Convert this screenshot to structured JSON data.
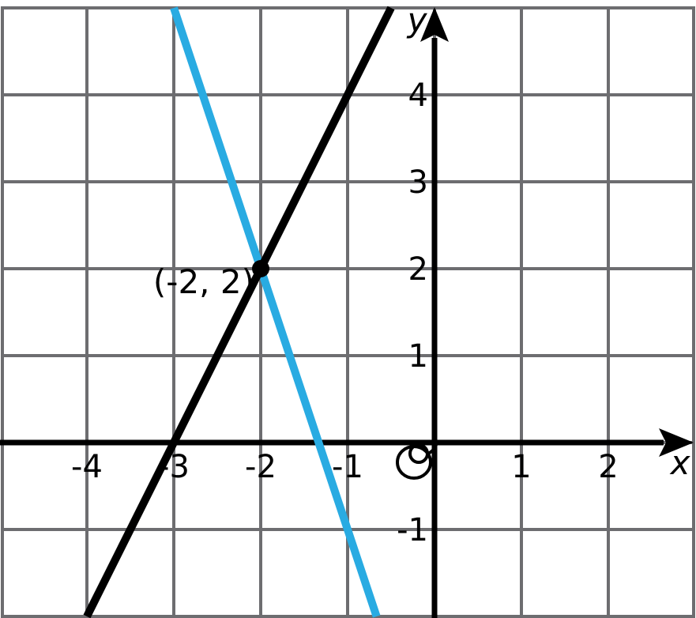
{
  "chart_data": {
    "type": "line",
    "title": "",
    "xlabel": "x",
    "ylabel": "y",
    "xlim": [
      -5,
      3
    ],
    "ylim": [
      -2,
      5
    ],
    "grid": true,
    "grid_step": 1,
    "x_ticks": [
      -4,
      -3,
      -2,
      -1,
      1,
      2
    ],
    "y_ticks": [
      4,
      3,
      2,
      1,
      -1
    ],
    "origin_label": "0",
    "series": [
      {
        "name": "black-line",
        "color": "#000000",
        "slope": 2,
        "points_on_grid": [
          [
            -3,
            0
          ],
          [
            -2,
            2
          ]
        ],
        "endpoints": [
          [
            -4,
            -2
          ],
          [
            -0.5,
            5
          ]
        ]
      },
      {
        "name": "blue-line",
        "color": "#29abe2",
        "slope": -3,
        "points_on_grid": [
          [
            -2,
            2
          ],
          [
            -1,
            -1
          ]
        ],
        "endpoints": [
          [
            -3,
            5
          ],
          [
            -0.6667,
            -2
          ]
        ]
      }
    ],
    "intersection_point": {
      "x": -2,
      "y": 2,
      "label": "(-2, 2)"
    }
  },
  "style": {
    "grid_color": "#6d6d70",
    "axis_color": "#000000",
    "background": "#ffffff"
  }
}
